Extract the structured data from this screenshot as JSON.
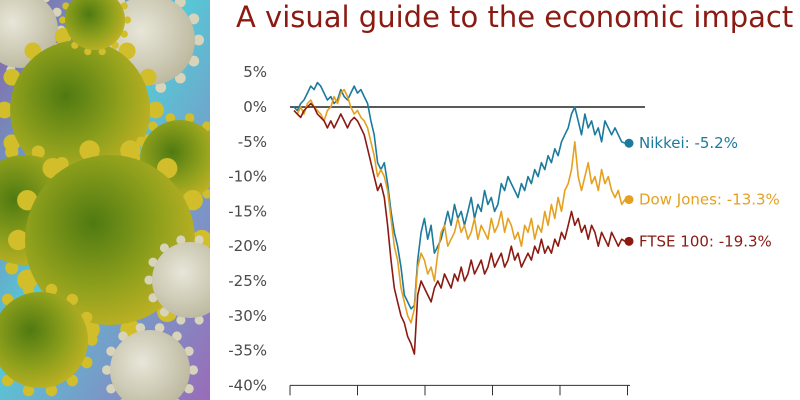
{
  "header": {
    "title": "A visual guide to the economic impact"
  },
  "image": {
    "subject": "coronavirus-particles",
    "colors": {
      "virus": "#b8a21c",
      "virus_dark": "#5e7a14",
      "background_cyan": "#57c7d6",
      "background_purple": "#8b5fa8"
    }
  },
  "chart_data": {
    "type": "line",
    "title": "",
    "xlabel": "",
    "ylabel": "",
    "ylim": [
      -40,
      5
    ],
    "yticks": [
      "5%",
      "0%",
      "-5%",
      "-10%",
      "-15%",
      "-20%",
      "-25%",
      "-30%",
      "-35%",
      "-40%"
    ],
    "ytick_values": [
      5,
      0,
      -5,
      -10,
      -15,
      -20,
      -25,
      -30,
      -35,
      -40
    ],
    "x": [
      1,
      2,
      3,
      4,
      5,
      6,
      7,
      8,
      9,
      10,
      11,
      12,
      13,
      14,
      15,
      16,
      17,
      18,
      19,
      20,
      21,
      22,
      23,
      24,
      25,
      26,
      27,
      28,
      29,
      30,
      31,
      32,
      33,
      34,
      35,
      36,
      37,
      38,
      39,
      40,
      41,
      42,
      43,
      44,
      45,
      46,
      47,
      48,
      49,
      50,
      51,
      52,
      53,
      54,
      55,
      56,
      57,
      58,
      59,
      60,
      61,
      62,
      63,
      64,
      65,
      66,
      67,
      68,
      69,
      70,
      71,
      72,
      73,
      74,
      75,
      76,
      77,
      78,
      79,
      80,
      81,
      82,
      83,
      84,
      85,
      86,
      87,
      88,
      89,
      90,
      91,
      92,
      93,
      94,
      95,
      96,
      97,
      98,
      99,
      100
    ],
    "grid": false,
    "legend": "end-of-line labels",
    "series": [
      {
        "name": "Nikkei",
        "label": "Nikkei: -5.2%",
        "color": "#1c7a9c",
        "values": [
          0,
          -0.5,
          0.5,
          1,
          2,
          3,
          2.5,
          3.5,
          3,
          2,
          1,
          1.5,
          0.5,
          1,
          2.5,
          1.5,
          1,
          2,
          3,
          2,
          2.5,
          1.5,
          0.5,
          -2,
          -4,
          -8,
          -9,
          -8,
          -11,
          -15,
          -18,
          -20,
          -23,
          -27,
          -28,
          -29,
          -28.5,
          -22,
          -18,
          -16,
          -19,
          -17,
          -21,
          -20,
          -19,
          -17,
          -15,
          -17,
          -14,
          -16,
          -15,
          -17,
          -15,
          -13,
          -16,
          -14,
          -15,
          -12,
          -14,
          -13,
          -15,
          -14,
          -11,
          -12,
          -10,
          -11,
          -12,
          -13,
          -11,
          -12,
          -10,
          -11,
          -9,
          -10,
          -8,
          -9,
          -7,
          -8,
          -6,
          -7,
          -5,
          -4,
          -3,
          -1,
          0,
          -2,
          -4,
          -1,
          -3,
          -2,
          -4,
          -3,
          -5,
          -2,
          -3,
          -4,
          -3,
          -4,
          -5,
          -5.2
        ]
      },
      {
        "name": "Dow Jones",
        "label": "Dow Jones: -13.3%",
        "color": "#e6a020",
        "values": [
          -0.5,
          -1,
          0,
          -1,
          0.5,
          1,
          0,
          -0.5,
          -1,
          -2,
          -0.5,
          0,
          1.5,
          0.5,
          2,
          2.5,
          1.5,
          0,
          -1,
          -0.5,
          -1.5,
          -2,
          -3,
          -5,
          -7,
          -10,
          -9,
          -10,
          -12,
          -16,
          -20,
          -22,
          -26,
          -28,
          -30,
          -31,
          -29,
          -23,
          -21,
          -22,
          -24,
          -23,
          -25,
          -21,
          -18,
          -17,
          -20,
          -19,
          -18,
          -16,
          -18,
          -17,
          -19,
          -18,
          -16,
          -19,
          -17,
          -18,
          -19,
          -16,
          -18,
          -17,
          -15,
          -18,
          -16,
          -17,
          -19,
          -18,
          -20,
          -17,
          -18,
          -16,
          -19,
          -17,
          -18,
          -15,
          -17,
          -14,
          -16,
          -13,
          -15,
          -12,
          -11,
          -9,
          -5,
          -10,
          -12,
          -10,
          -8,
          -11,
          -10,
          -12,
          -9,
          -11,
          -10,
          -12,
          -13,
          -12,
          -14,
          -13.3
        ]
      },
      {
        "name": "FTSE 100",
        "label": "FTSE 100: -19.3%",
        "color": "#8a1a12",
        "values": [
          -0.5,
          -1,
          -1.5,
          -0.5,
          0,
          0.5,
          0,
          -1,
          -1.5,
          -2,
          -3,
          -2,
          -3,
          -2,
          -1,
          -2,
          -3,
          -2,
          -1.5,
          -2,
          -3,
          -4,
          -6,
          -8,
          -10,
          -12,
          -11,
          -13,
          -17,
          -22,
          -26,
          -28,
          -30,
          -31,
          -33,
          -34,
          -35.5,
          -27,
          -25,
          -26,
          -27,
          -28,
          -26,
          -25,
          -26,
          -24,
          -25,
          -26,
          -24,
          -25,
          -23,
          -25,
          -24,
          -22,
          -24,
          -23,
          -22,
          -24,
          -23,
          -21,
          -23,
          -22,
          -21,
          -23,
          -22,
          -20,
          -22,
          -21,
          -23,
          -22,
          -21,
          -22,
          -20,
          -21,
          -19,
          -21,
          -20,
          -21,
          -19,
          -20,
          -18,
          -19,
          -17,
          -15,
          -17,
          -16,
          -18,
          -17,
          -19,
          -17,
          -18,
          -20,
          -18,
          -19,
          -20,
          -18,
          -19,
          -20,
          -19,
          -19.3
        ]
      }
    ]
  }
}
